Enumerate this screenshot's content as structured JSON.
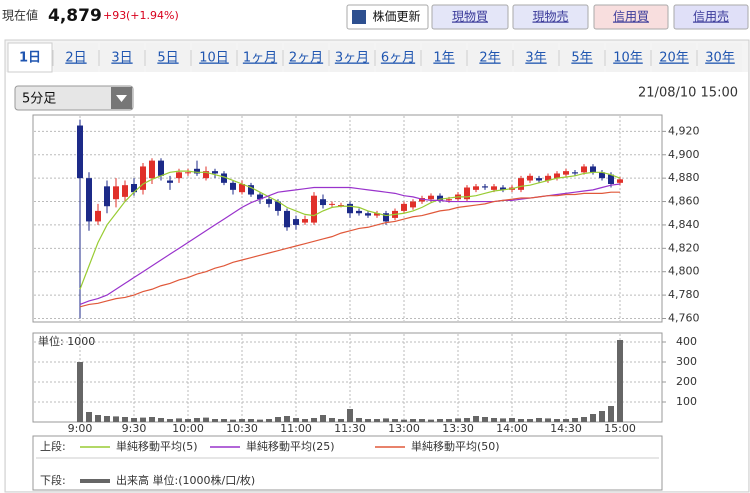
{
  "header": {
    "label": "現在値",
    "price": "4,879",
    "change": "+93",
    "change_pct": "(+1.94%)",
    "buttons": [
      "株価更新",
      "現物買",
      "現物売",
      "信用買",
      "信用売"
    ]
  },
  "tabs": [
    "1日",
    "2日",
    "3日",
    "5日",
    "10日",
    "1ヶ月",
    "2ヶ月",
    "3ヶ月",
    "6ヶ月",
    "1年",
    "2年",
    "3年",
    "5年",
    "10年",
    "20年",
    "30年"
  ],
  "interval": "5分足",
  "timestamp": "21/08/10 15:00",
  "legend": {
    "upper": "上段:",
    "lower": "下段:"
  },
  "chart_data": [
    {
      "type": "candlestick",
      "up_color": "#e0302a",
      "down_color": "#1c2a88",
      "categories": [
        "9:00",
        null,
        null,
        null,
        null,
        null,
        "9:30",
        null,
        null,
        null,
        null,
        null,
        "10:00",
        null,
        null,
        null,
        null,
        null,
        "10:30",
        null,
        null,
        null,
        null,
        null,
        "11:00",
        null,
        null,
        null,
        null,
        null,
        "11:30",
        null,
        null,
        null,
        null,
        null,
        "13:00",
        null,
        null,
        null,
        null,
        null,
        "13:30",
        null,
        null,
        null,
        null,
        null,
        "14:00",
        null,
        null,
        null,
        null,
        null,
        "14:30",
        null,
        null,
        null,
        null,
        null,
        "15:00"
      ],
      "open": [
        4925,
        4880,
        4843,
        4873,
        4862,
        4864,
        4875,
        4870,
        4880,
        4895,
        4878,
        4880,
        4885,
        4888,
        4880,
        4886,
        4884,
        4876,
        4868,
        4874,
        4866,
        4862,
        4860,
        4852,
        4845,
        4842,
        4842,
        4862,
        4858,
        4857,
        4858,
        4852,
        4850,
        4848,
        4850,
        4846,
        4852,
        4855,
        4860,
        4862,
        4865,
        4861,
        4862,
        4862,
        4870,
        4873,
        4870,
        4872,
        4870,
        4870,
        4878,
        4880,
        4878,
        4880,
        4883,
        4885,
        4885,
        4890,
        4885,
        4883,
        4876
      ],
      "high": [
        4930,
        4885,
        4858,
        4878,
        4880,
        4878,
        4880,
        4893,
        4897,
        4897,
        4882,
        4888,
        4888,
        4895,
        4890,
        4888,
        4886,
        4878,
        4878,
        4876,
        4868,
        4865,
        4862,
        4854,
        4848,
        4848,
        4868,
        4866,
        4860,
        4859,
        4860,
        4854,
        4852,
        4852,
        4852,
        4854,
        4860,
        4862,
        4865,
        4867,
        4867,
        4864,
        4868,
        4874,
        4875,
        4875,
        4875,
        4874,
        4874,
        4882,
        4884,
        4882,
        4884,
        4886,
        4888,
        4887,
        4892,
        4892,
        4887,
        4885,
        4881
      ],
      "low": [
        4760,
        4835,
        4840,
        4850,
        4855,
        4860,
        4865,
        4866,
        4875,
        4878,
        4870,
        4876,
        4882,
        4882,
        4878,
        4880,
        4874,
        4866,
        4866,
        4864,
        4858,
        4855,
        4848,
        4835,
        4836,
        4840,
        4840,
        4854,
        4855,
        4855,
        4846,
        4848,
        4846,
        4846,
        4840,
        4844,
        4850,
        4853,
        4858,
        4860,
        4859,
        4859,
        4860,
        4860,
        4868,
        4870,
        4868,
        4868,
        4868,
        4868,
        4876,
        4876,
        4876,
        4878,
        4881,
        4882,
        4883,
        4883,
        4878,
        4872,
        4874
      ],
      "close": [
        4880,
        4843,
        4852,
        4856,
        4873,
        4874,
        4868,
        4890,
        4895,
        4882,
        4876,
        4885,
        4885,
        4884,
        4886,
        4884,
        4876,
        4870,
        4875,
        4866,
        4862,
        4858,
        4852,
        4838,
        4840,
        4845,
        4865,
        4857,
        4858,
        4857,
        4850,
        4850,
        4848,
        4850,
        4843,
        4852,
        4858,
        4860,
        4863,
        4865,
        4861,
        4862,
        4866,
        4872,
        4873,
        4872,
        4873,
        4870,
        4872,
        4880,
        4882,
        4878,
        4882,
        4884,
        4886,
        4884,
        4890,
        4885,
        4880,
        4875,
        4879
      ],
      "series": [
        {
          "name": "単純移動平均(5)",
          "color": "#99cc33",
          "values": [
            4785,
            4805,
            4825,
            4840,
            4850,
            4860,
            4868,
            4875,
            4879,
            4882,
            4885,
            4886,
            4886,
            4885,
            4885,
            4883,
            4881,
            4878,
            4875,
            4872,
            4868,
            4864,
            4860,
            4855,
            4852,
            4849,
            4848,
            4852,
            4855,
            4856,
            4856,
            4855,
            4852,
            4850,
            4848,
            4849,
            4850,
            4852,
            4855,
            4859,
            4862,
            4863,
            4864,
            4864,
            4865,
            4867,
            4869,
            4870,
            4871,
            4873,
            4874,
            4876,
            4878,
            4880,
            4881,
            4882,
            4884,
            4885,
            4885,
            4883,
            4880
          ]
        },
        {
          "name": "単純移動平均(25)",
          "color": "#9933cc",
          "values": [
            4772,
            4775,
            4777,
            4780,
            4785,
            4790,
            4795,
            4800,
            4805,
            4810,
            4815,
            4820,
            4825,
            4830,
            4835,
            4840,
            4845,
            4850,
            4855,
            4859,
            4862,
            4865,
            4868,
            4869,
            4870,
            4871,
            4872,
            4872,
            4872,
            4872,
            4872,
            4871,
            4870,
            4869,
            4868,
            4867,
            4865,
            4864,
            4862,
            4861,
            4861,
            4860,
            4860,
            4860,
            4860,
            4860,
            4860,
            4861,
            4861,
            4862,
            4863,
            4864,
            4865,
            4866,
            4867,
            4868,
            4869,
            4870,
            4872,
            4874,
            4875
          ]
        },
        {
          "name": "単純移動平均(50)",
          "color": "#e0583a",
          "values": [
            4770,
            4772,
            4773,
            4775,
            4777,
            4778,
            4780,
            4783,
            4785,
            4788,
            4790,
            4793,
            4795,
            4798,
            4800,
            4803,
            4805,
            4808,
            4810,
            4812,
            4814,
            4816,
            4818,
            4820,
            4822,
            4824,
            4826,
            4828,
            4830,
            4833,
            4835,
            4837,
            4838,
            4840,
            4842,
            4843,
            4845,
            4847,
            4848,
            4850,
            4852,
            4853,
            4855,
            4856,
            4857,
            4858,
            4860,
            4861,
            4862,
            4863,
            4863,
            4864,
            4865,
            4865,
            4866,
            4866,
            4867,
            4867,
            4867,
            4868,
            4868
          ]
        }
      ],
      "ylim": [
        4757,
        4934
      ],
      "yticks": [
        {
          "value": 4760,
          "label": "4,760"
        },
        {
          "value": 4780,
          "label": "4,780"
        },
        {
          "value": 4800,
          "label": "4,800"
        },
        {
          "value": 4820,
          "label": "4,820"
        },
        {
          "value": 4840,
          "label": "4,840"
        },
        {
          "value": 4860,
          "label": "4,860"
        },
        {
          "value": 4880,
          "label": "4,880"
        },
        {
          "value": 4900,
          "label": "4,900"
        },
        {
          "value": 4920,
          "label": "4,920"
        }
      ],
      "grid": true
    },
    {
      "type": "bar",
      "name": "出来高 単位:(1000株/口/枚)",
      "unit_label": "単位: 1000",
      "color": "#666666",
      "values": [
        300,
        50,
        35,
        30,
        28,
        25,
        20,
        22,
        25,
        20,
        15,
        18,
        15,
        20,
        22,
        15,
        15,
        12,
        15,
        15,
        12,
        15,
        25,
        30,
        20,
        15,
        20,
        35,
        20,
        15,
        65,
        20,
        15,
        15,
        18,
        15,
        12,
        15,
        15,
        12,
        15,
        15,
        18,
        20,
        30,
        25,
        20,
        18,
        20,
        15,
        15,
        20,
        18,
        15,
        15,
        20,
        25,
        40,
        55,
        80,
        410
      ],
      "ylim": [
        0,
        445
      ],
      "yticks": [
        100,
        200,
        300,
        400
      ],
      "grid": true
    }
  ]
}
